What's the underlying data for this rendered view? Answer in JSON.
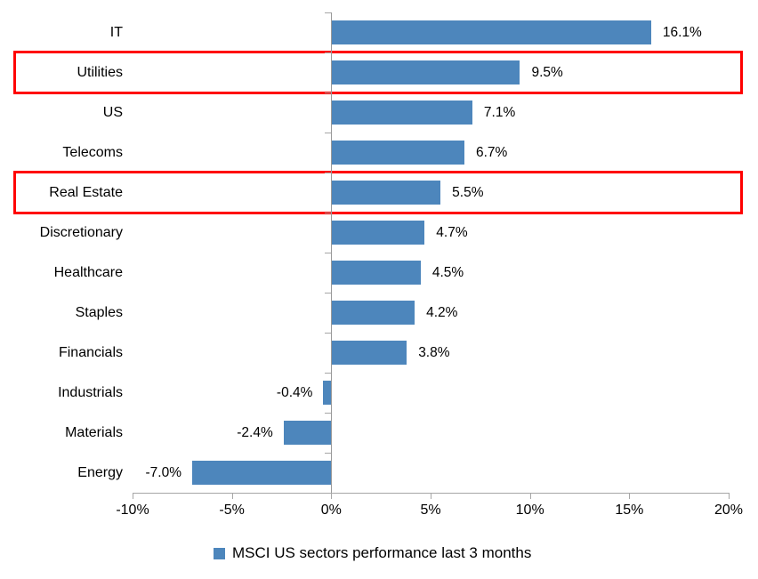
{
  "chart_data": {
    "type": "bar",
    "orientation": "horizontal",
    "title": "",
    "xlabel": "",
    "ylabel": "",
    "categories": [
      "IT",
      "Utilities",
      "US",
      "Telecoms",
      "Real Estate",
      "Discretionary",
      "Healthcare",
      "Staples",
      "Financials",
      "Industrials",
      "Materials",
      "Energy"
    ],
    "values": [
      16.1,
      9.5,
      7.1,
      6.7,
      5.5,
      4.7,
      4.5,
      4.2,
      3.8,
      -0.4,
      -2.4,
      -7.0
    ],
    "value_labels": [
      "16.1%",
      "9.5%",
      "7.1%",
      "6.7%",
      "5.5%",
      "4.7%",
      "4.5%",
      "4.2%",
      "3.8%",
      "-0.4%",
      "-2.4%",
      "-7.0%"
    ],
    "highlighted_categories": [
      "Utilities",
      "Real Estate"
    ],
    "x_axis": {
      "ticks": [
        "-10%",
        "-5%",
        "0%",
        "5%",
        "10%",
        "15%",
        "20%"
      ],
      "xlim": [
        -10,
        20
      ]
    },
    "grid": false,
    "bar_color": "#4D86BC",
    "highlight_color": "#FF0000",
    "legend": {
      "label": "MSCI US sectors performance last 3 months",
      "marker_color": "#4D86BC",
      "position": "bottom"
    }
  }
}
